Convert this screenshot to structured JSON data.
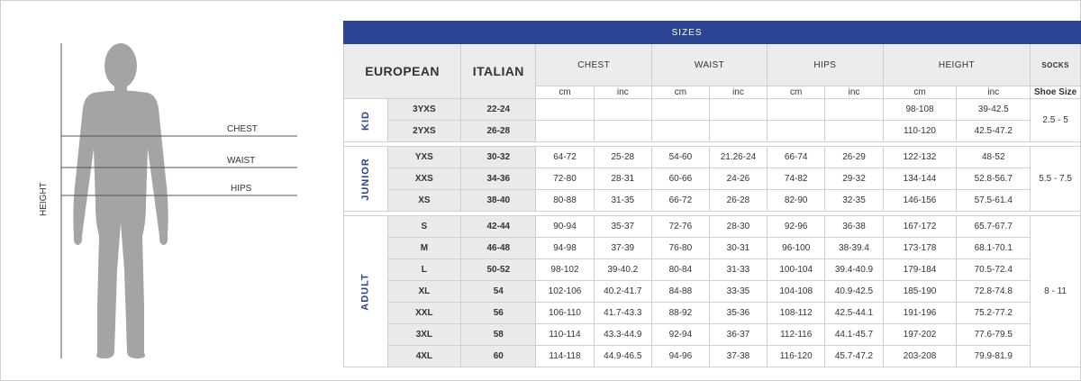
{
  "figure": {
    "chest_label": "CHEST",
    "waist_label": "WAIST",
    "hips_label": "HIPS",
    "height_label": "HEIGHT",
    "body_color": "#a4a4a4"
  },
  "header": {
    "title": "SIZES",
    "european": "EUROPEAN",
    "italian": "ITALIAN",
    "chest": "CHEST",
    "waist": "WAIST",
    "hips": "HIPS",
    "height": "HEIGHT",
    "socks": "SOCKS",
    "unit_cm": "cm",
    "unit_inc": "inc",
    "shoe_size": "Shoe Size"
  },
  "colors": {
    "header_blue": "#2c4493",
    "grid": "#cfcfcf",
    "label_gray": "#eaeaea"
  },
  "groups": [
    {
      "label": "KID",
      "socks": "2.5 - 5",
      "rows": [
        {
          "eu": "3YXS",
          "it": "22-24",
          "chest_cm": "",
          "chest_in": "",
          "waist_cm": "",
          "waist_in": "",
          "hips_cm": "",
          "hips_in": "",
          "height_cm": "98-108",
          "height_in": "39-42.5"
        },
        {
          "eu": "2YXS",
          "it": "26-28",
          "chest_cm": "",
          "chest_in": "",
          "waist_cm": "",
          "waist_in": "",
          "hips_cm": "",
          "hips_in": "",
          "height_cm": "110-120",
          "height_in": "42.5-47.2"
        }
      ]
    },
    {
      "label": "JUNIOR",
      "socks": "5.5 - 7.5",
      "rows": [
        {
          "eu": "YXS",
          "it": "30-32",
          "chest_cm": "64-72",
          "chest_in": "25-28",
          "waist_cm": "54-60",
          "waist_in": "21.26-24",
          "hips_cm": "66-74",
          "hips_in": "26-29",
          "height_cm": "122-132",
          "height_in": "48-52"
        },
        {
          "eu": "XXS",
          "it": "34-36",
          "chest_cm": "72-80",
          "chest_in": "28-31",
          "waist_cm": "60-66",
          "waist_in": "24-26",
          "hips_cm": "74-82",
          "hips_in": "29-32",
          "height_cm": "134-144",
          "height_in": "52.8-56.7"
        },
        {
          "eu": "XS",
          "it": "38-40",
          "chest_cm": "80-88",
          "chest_in": "31-35",
          "waist_cm": "66-72",
          "waist_in": "26-28",
          "hips_cm": "82-90",
          "hips_in": "32-35",
          "height_cm": "146-156",
          "height_in": "57.5-61.4"
        }
      ]
    },
    {
      "label": "ADULT",
      "socks": "8 - 11",
      "rows": [
        {
          "eu": "S",
          "it": "42-44",
          "chest_cm": "90-94",
          "chest_in": "35-37",
          "waist_cm": "72-76",
          "waist_in": "28-30",
          "hips_cm": "92-96",
          "hips_in": "36-38",
          "height_cm": "167-172",
          "height_in": "65.7-67.7"
        },
        {
          "eu": "M",
          "it": "46-48",
          "chest_cm": "94-98",
          "chest_in": "37-39",
          "waist_cm": "76-80",
          "waist_in": "30-31",
          "hips_cm": "96-100",
          "hips_in": "38-39.4",
          "height_cm": "173-178",
          "height_in": "68.1-70.1"
        },
        {
          "eu": "L",
          "it": "50-52",
          "chest_cm": "98-102",
          "chest_in": "39-40.2",
          "waist_cm": "80-84",
          "waist_in": "31-33",
          "hips_cm": "100-104",
          "hips_in": "39.4-40.9",
          "height_cm": "179-184",
          "height_in": "70.5-72.4"
        },
        {
          "eu": "XL",
          "it": "54",
          "chest_cm": "102-106",
          "chest_in": "40.2-41.7",
          "waist_cm": "84-88",
          "waist_in": "33-35",
          "hips_cm": "104-108",
          "hips_in": "40.9-42.5",
          "height_cm": "185-190",
          "height_in": "72.8-74.8"
        },
        {
          "eu": "XXL",
          "it": "56",
          "chest_cm": "106-110",
          "chest_in": "41.7-43.3",
          "waist_cm": "88-92",
          "waist_in": "35-36",
          "hips_cm": "108-112",
          "hips_in": "42.5-44.1",
          "height_cm": "191-196",
          "height_in": "75.2-77.2"
        },
        {
          "eu": "3XL",
          "it": "58",
          "chest_cm": "110-114",
          "chest_in": "43.3-44.9",
          "waist_cm": "92-94",
          "waist_in": "36-37",
          "hips_cm": "112-116",
          "hips_in": "44.1-45.7",
          "height_cm": "197-202",
          "height_in": "77.6-79.5"
        },
        {
          "eu": "4XL",
          "it": "60",
          "chest_cm": "114-118",
          "chest_in": "44.9-46.5",
          "waist_cm": "94-96",
          "waist_in": "37-38",
          "hips_cm": "116-120",
          "hips_in": "45.7-47.2",
          "height_cm": "203-208",
          "height_in": "79.9-81.9"
        }
      ]
    }
  ]
}
